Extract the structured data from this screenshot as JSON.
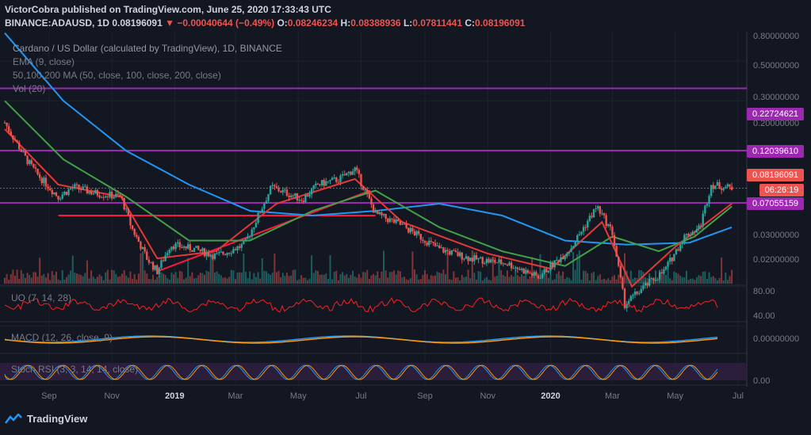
{
  "header": {
    "publisher_line": "VictorCobra published on TradingView.com, June 25, 2020 17:33:43 UTC",
    "symbol": "BINANCE:ADAUSD, 1D",
    "last": "0.08196091",
    "change": "▼ −0.00040644 (−0.49%)",
    "o_label": "O:",
    "o_value": "0.08246234",
    "h_label": "H:",
    "h_value": "0.08388936",
    "l_label": "L:",
    "l_value": "0.07811441",
    "c_label": "C:",
    "c_value": "0.08196091"
  },
  "legend": {
    "title": "Cardano / US Dollar (calculated by TradingView), 1D, BINANCE",
    "ema": "EMA (9, close)",
    "ma": "50,100,200 MA (50, close, 100, close, 200, close)",
    "vol": "Vol (20)",
    "uo": "UO (7, 14, 28)",
    "macd": "MACD (12, 26, close, 9)",
    "stoch": "Stoch RSI (3, 3, 14, 14, close)"
  },
  "price_scale": {
    "ticks": [
      "0.80000000",
      "0.50000000",
      "0.30000000",
      "0.20000000",
      "0.03000000",
      "0.02000000"
    ]
  },
  "tags": {
    "r1": "0.22724621",
    "r2": "0.12039610",
    "last": "0.08196091",
    "countdown": "06:26:19",
    "s1": "0.07055159"
  },
  "uo_scale": [
    "80.00",
    "40.00"
  ],
  "macd_scale": [
    "0.00000000"
  ],
  "stoch_scale": [
    "0.00"
  ],
  "time_axis": [
    "Sep",
    "Nov",
    "2019",
    "Mar",
    "May",
    "Jul",
    "Sep",
    "Nov",
    "2020",
    "Mar",
    "May",
    "Jul"
  ],
  "footer": {
    "brand": "TradingView"
  },
  "colors": {
    "background": "#131722",
    "resistance_lines": "#9c27b0",
    "ema": "#e53935",
    "ma50": "#43a047",
    "ma100": "#ff9800",
    "ma200": "#2196f3",
    "up": "#26a69a",
    "down": "#ef5350"
  },
  "chart_data": {
    "type": "candlestick",
    "symbol": "BINANCE:ADAUSD",
    "timeframe": "1D",
    "x_range": [
      "2018-08",
      "2020-06-25"
    ],
    "close_path": [
      {
        "t": "2018-07-20",
        "v": 0.16
      },
      {
        "t": "2018-08-10",
        "v": 0.11
      },
      {
        "t": "2018-08-20",
        "v": 0.095
      },
      {
        "t": "2018-09-10",
        "v": 0.075
      },
      {
        "t": "2018-09-25",
        "v": 0.083
      },
      {
        "t": "2018-10-15",
        "v": 0.078
      },
      {
        "t": "2018-11-10",
        "v": 0.075
      },
      {
        "t": "2018-11-20",
        "v": 0.055
      },
      {
        "t": "2018-12-05",
        "v": 0.04
      },
      {
        "t": "2018-12-15",
        "v": 0.035
      },
      {
        "t": "2018-12-28",
        "v": 0.046
      },
      {
        "t": "2019-01-20",
        "v": 0.044
      },
      {
        "t": "2019-02-10",
        "v": 0.041
      },
      {
        "t": "2019-03-10",
        "v": 0.046
      },
      {
        "t": "2019-04-05",
        "v": 0.083
      },
      {
        "t": "2019-05-05",
        "v": 0.073
      },
      {
        "t": "2019-05-20",
        "v": 0.085
      },
      {
        "t": "2019-06-10",
        "v": 0.09
      },
      {
        "t": "2019-06-25",
        "v": 0.1
      },
      {
        "t": "2019-07-15",
        "v": 0.063
      },
      {
        "t": "2019-08-10",
        "v": 0.056
      },
      {
        "t": "2019-09-15",
        "v": 0.044
      },
      {
        "t": "2019-10-15",
        "v": 0.04
      },
      {
        "t": "2019-11-20",
        "v": 0.038
      },
      {
        "t": "2019-12-20",
        "v": 0.033
      },
      {
        "t": "2020-01-20",
        "v": 0.044
      },
      {
        "t": "2020-02-15",
        "v": 0.068
      },
      {
        "t": "2020-03-01",
        "v": 0.052
      },
      {
        "t": "2020-03-13",
        "v": 0.025
      },
      {
        "t": "2020-04-01",
        "v": 0.03
      },
      {
        "t": "2020-04-20",
        "v": 0.035
      },
      {
        "t": "2020-05-10",
        "v": 0.05
      },
      {
        "t": "2020-05-25",
        "v": 0.055
      },
      {
        "t": "2020-06-05",
        "v": 0.085
      },
      {
        "t": "2020-06-25",
        "v": 0.082
      }
    ],
    "ema9_path": [
      {
        "t": "2018-07-20",
        "v": 0.15
      },
      {
        "t": "2018-09-10",
        "v": 0.085
      },
      {
        "t": "2018-11-10",
        "v": 0.075
      },
      {
        "t": "2018-12-15",
        "v": 0.04
      },
      {
        "t": "2019-02-10",
        "v": 0.043
      },
      {
        "t": "2019-04-10",
        "v": 0.07
      },
      {
        "t": "2019-06-25",
        "v": 0.09
      },
      {
        "t": "2019-08-10",
        "v": 0.058
      },
      {
        "t": "2019-11-01",
        "v": 0.042
      },
      {
        "t": "2020-01-01",
        "v": 0.036
      },
      {
        "t": "2020-02-20",
        "v": 0.058
      },
      {
        "t": "2020-03-20",
        "v": 0.03
      },
      {
        "t": "2020-05-01",
        "v": 0.045
      },
      {
        "t": "2020-06-25",
        "v": 0.07
      }
    ],
    "ma50_path": [
      {
        "t": "2018-07-20",
        "v": 0.2
      },
      {
        "t": "2018-09-15",
        "v": 0.11
      },
      {
        "t": "2018-11-15",
        "v": 0.075
      },
      {
        "t": "2019-01-15",
        "v": 0.048
      },
      {
        "t": "2019-03-15",
        "v": 0.048
      },
      {
        "t": "2019-05-15",
        "v": 0.065
      },
      {
        "t": "2019-07-15",
        "v": 0.08
      },
      {
        "t": "2019-09-15",
        "v": 0.055
      },
      {
        "t": "2019-11-15",
        "v": 0.043
      },
      {
        "t": "2020-01-15",
        "v": 0.037
      },
      {
        "t": "2020-03-01",
        "v": 0.05
      },
      {
        "t": "2020-04-15",
        "v": 0.043
      },
      {
        "t": "2020-05-20",
        "v": 0.05
      },
      {
        "t": "2020-06-25",
        "v": 0.068
      }
    ],
    "ma200_path": [
      {
        "t": "2018-07-20",
        "v": 0.4
      },
      {
        "t": "2018-09-15",
        "v": 0.2
      },
      {
        "t": "2018-11-15",
        "v": 0.12
      },
      {
        "t": "2019-01-15",
        "v": 0.085
      },
      {
        "t": "2019-03-15",
        "v": 0.065
      },
      {
        "t": "2019-05-15",
        "v": 0.062
      },
      {
        "t": "2019-07-15",
        "v": 0.065
      },
      {
        "t": "2019-09-15",
        "v": 0.07
      },
      {
        "t": "2019-11-15",
        "v": 0.062
      },
      {
        "t": "2020-01-15",
        "v": 0.048
      },
      {
        "t": "2020-03-15",
        "v": 0.046
      },
      {
        "t": "2020-05-15",
        "v": 0.047
      },
      {
        "t": "2020-06-25",
        "v": 0.055
      }
    ],
    "horizontal_levels": [
      0.22724621,
      0.1203961,
      0.07055159
    ],
    "last_price": 0.08196091,
    "trendlines": [
      {
        "from": {
          "t": "2018-09-10",
          "v": 0.062
        },
        "to": {
          "t": "2019-07-15",
          "v": 0.062
        }
      },
      {
        "from": {
          "t": "2018-12-15",
          "v": 0.035
        },
        "to": {
          "t": "2019-07-10",
          "v": 0.08
        }
      }
    ]
  }
}
